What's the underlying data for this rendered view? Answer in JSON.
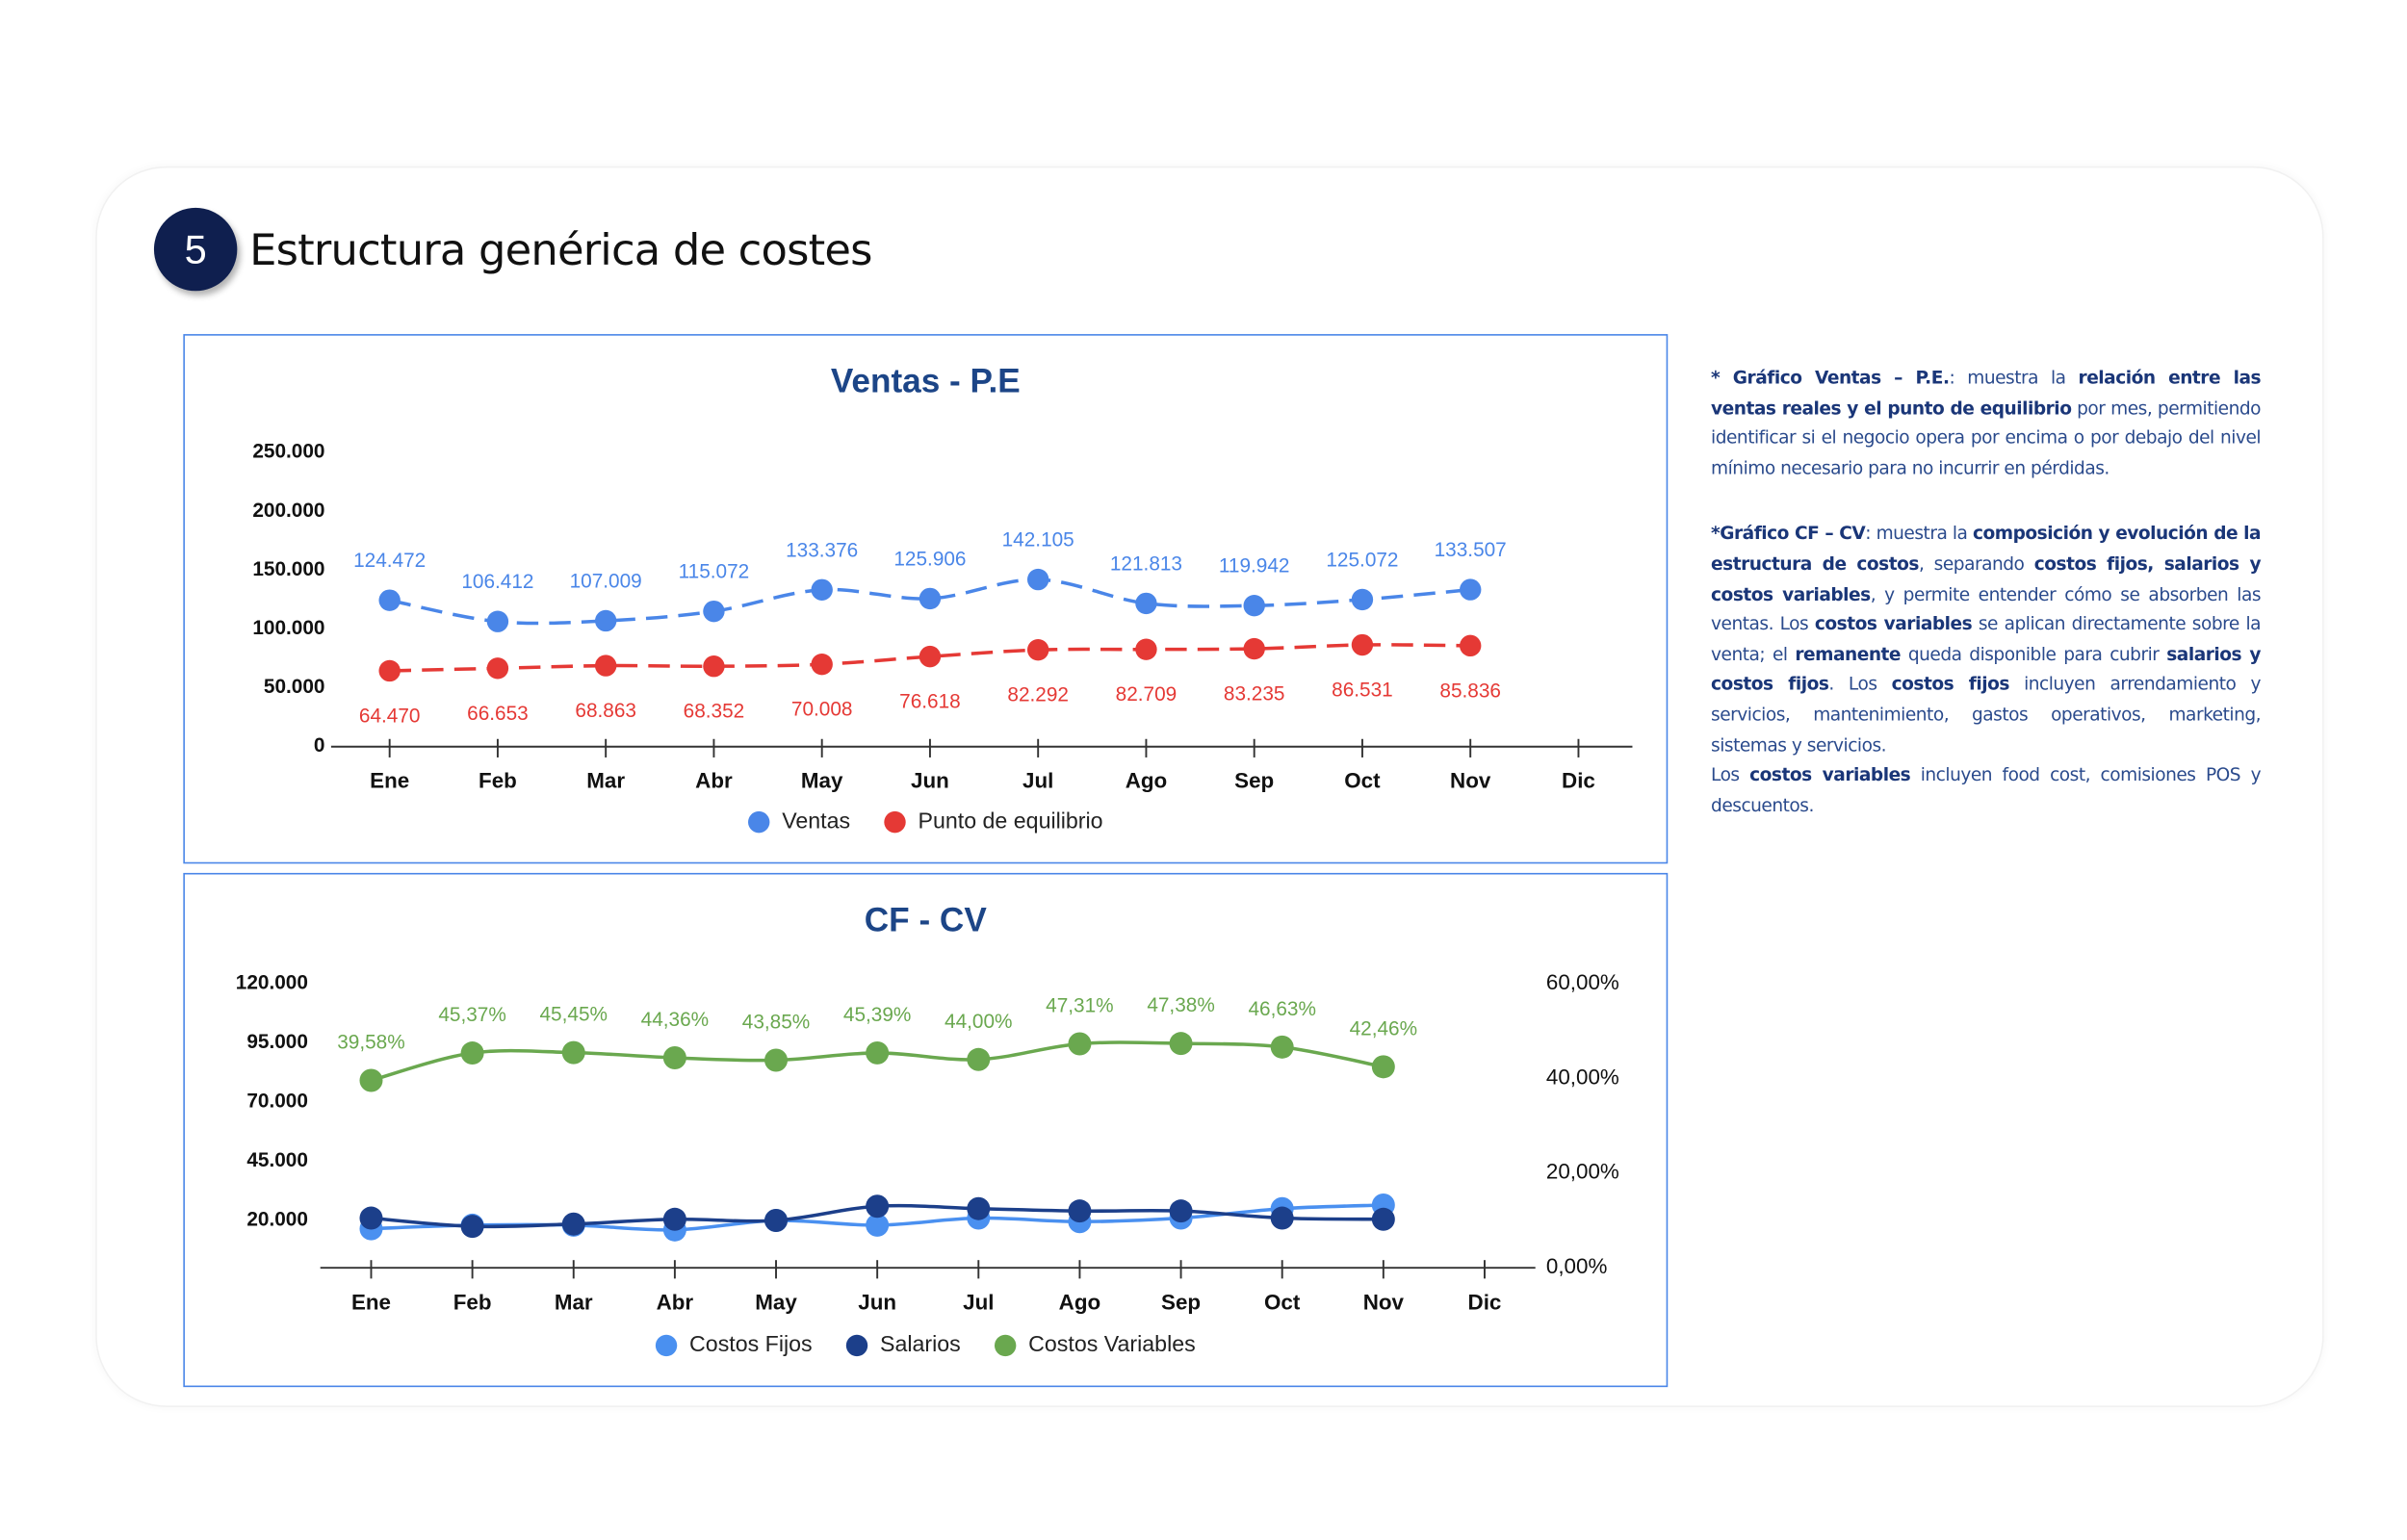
{
  "header": {
    "number": "5",
    "title": "Estructura genérica de costes"
  },
  "chart_data": [
    {
      "type": "line",
      "title": "Ventas - P.E",
      "categories": [
        "Ene",
        "Feb",
        "Mar",
        "Abr",
        "May",
        "Jun",
        "Jul",
        "Ago",
        "Sep",
        "Oct",
        "Nov",
        "Dic"
      ],
      "series": [
        {
          "name": "Ventas",
          "color": "#4a86e8",
          "dashed": true,
          "label_position": "above",
          "values": [
            124472,
            106412,
            107009,
            115072,
            133376,
            125906,
            142105,
            121813,
            119942,
            125072,
            133507,
            null
          ],
          "value_labels": [
            "124.472",
            "106.412",
            "107.009",
            "115.072",
            "133.376",
            "125.906",
            "142.105",
            "121.813",
            "119.942",
            "125.072",
            "133.507",
            null
          ]
        },
        {
          "name": "Punto de equilibrio",
          "color": "#e53935",
          "dashed": true,
          "label_position": "below",
          "values": [
            64470,
            66653,
            68863,
            68352,
            70008,
            76618,
            82292,
            82709,
            83235,
            86531,
            85836,
            null
          ],
          "value_labels": [
            "64.470",
            "66.653",
            "68.863",
            "68.352",
            "70.008",
            "76.618",
            "82.292",
            "82.709",
            "83.235",
            "86.531",
            "85.836",
            null
          ]
        }
      ],
      "ylim": [
        0,
        250000
      ],
      "yticks": [
        0,
        {
          "value": 50000,
          "label": "50.000"
        },
        {
          "value": 100000,
          "label": "100.000"
        },
        {
          "value": 150000,
          "label": "150.000"
        },
        {
          "value": 200000,
          "label": "200.000"
        },
        {
          "value": 250000,
          "label": "250.000"
        }
      ],
      "legend": "bottom"
    },
    {
      "type": "line",
      "title": "CF - CV",
      "categories": [
        "Ene",
        "Feb",
        "Mar",
        "Abr",
        "May",
        "Jun",
        "Jul",
        "Ago",
        "Sep",
        "Oct",
        "Nov",
        "Dic"
      ],
      "series": [
        {
          "name": "Costos Fijos",
          "color": "#4a90f0",
          "values": [
            16500,
            18000,
            18000,
            16000,
            20000,
            18000,
            21000,
            19500,
            21000,
            25000,
            26500,
            null
          ]
        },
        {
          "name": "Salarios",
          "color": "#1c3f8a",
          "values": [
            21000,
            17500,
            18500,
            20500,
            20000,
            26000,
            25000,
            24000,
            24000,
            21000,
            20500,
            null
          ]
        },
        {
          "name": "Costos Variables",
          "color": "#6aa84f",
          "axis": "y2",
          "label_position": "above",
          "values": [
            39.58,
            45.37,
            45.45,
            44.36,
            43.85,
            45.39,
            44.0,
            47.31,
            47.38,
            46.63,
            42.46,
            null
          ],
          "value_labels": [
            "39,58%",
            "45,37%",
            "45,45%",
            "44,36%",
            "43,85%",
            "45,39%",
            "44,00%",
            "47,31%",
            "47,38%",
            "46,63%",
            "42,46%",
            null
          ]
        }
      ],
      "ylim": [
        0,
        120000
      ],
      "yticks": [
        {
          "value": 20000,
          "label": "20.000"
        },
        {
          "value": 45000,
          "label": "45.000"
        },
        {
          "value": 70000,
          "label": "70.000"
        },
        {
          "value": 95000,
          "label": "95.000"
        },
        {
          "value": 120000,
          "label": "120.000"
        }
      ],
      "y2lim": [
        0,
        60
      ],
      "y2ticks": [
        {
          "value": 0,
          "label": "0,00%"
        },
        {
          "value": 20,
          "label": "20,00%"
        },
        {
          "value": 40,
          "label": "40,00%"
        },
        {
          "value": 60,
          "label": "60,00%"
        }
      ],
      "legend": "bottom"
    }
  ],
  "notes": [
    [
      {
        "text": "* Gráfico Ventas – P.E.",
        "bold": true
      },
      {
        "text": ": muestra la ",
        "bold": false
      },
      {
        "text": "relación entre las ventas reales y el punto de equilibrio",
        "bold": true
      },
      {
        "text": " por mes, permitiendo identificar si el negocio opera por encima o por debajo del nivel mínimo necesario para no incurrir en pérdidas.",
        "bold": false
      }
    ],
    [
      {
        "text": "*Gráfico CF – CV",
        "bold": true
      },
      {
        "text": ": muestra la ",
        "bold": false
      },
      {
        "text": "composición y evolución de la estructura de costos",
        "bold": true
      },
      {
        "text": ", separando ",
        "bold": false
      },
      {
        "text": "costos fijos, salarios y costos variables",
        "bold": true
      },
      {
        "text": ", y permite entender cómo se absorben las ventas. Los ",
        "bold": false
      },
      {
        "text": "costos variables",
        "bold": true
      },
      {
        "text": " se aplican directamente sobre la venta; el ",
        "bold": false
      },
      {
        "text": "remanente",
        "bold": true
      },
      {
        "text": " queda disponible para cubrir ",
        "bold": false
      },
      {
        "text": "salarios y costos fijos",
        "bold": true
      },
      {
        "text": ". Los ",
        "bold": false
      },
      {
        "text": "costos fijos",
        "bold": true
      },
      {
        "text": " incluyen arrendamiento y servicios, mantenimiento, gastos operativos, marketing, sistemas y servicios.",
        "bold": false
      }
    ],
    [
      {
        "text": " Los ",
        "bold": false
      },
      {
        "text": "costos variables",
        "bold": true
      },
      {
        "text": " incluyen food cost, comisiones POS y descuentos.",
        "bold": false
      }
    ]
  ]
}
